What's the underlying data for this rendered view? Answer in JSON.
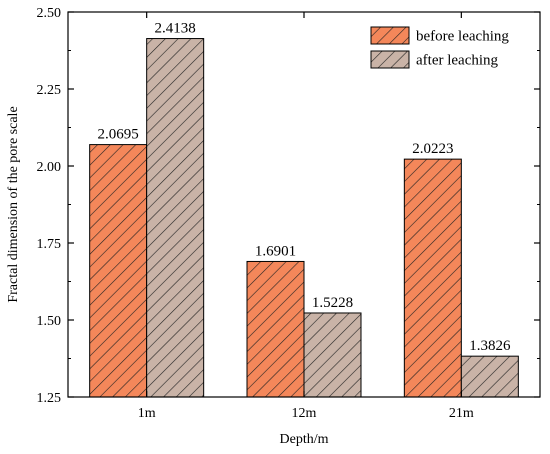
{
  "chart_data": {
    "type": "bar",
    "categories": [
      "1m",
      "12m",
      "21m"
    ],
    "series": [
      {
        "name": "before leaching",
        "values": [
          2.0695,
          1.6901,
          2.0223
        ],
        "value_labels": [
          "2.0695",
          "1.6901",
          "2.0223"
        ],
        "color": "#f4875a",
        "hatch": "diagonal-forward"
      },
      {
        "name": "after leaching",
        "values": [
          2.4138,
          1.5228,
          1.3826
        ],
        "value_labels": [
          "2.4138",
          "1.5228",
          "1.3826"
        ],
        "color": "#c9b3a7",
        "hatch": "diagonal-forward"
      }
    ],
    "xlabel": "Depth/m",
    "ylabel": "Fractal dimension of the pore scale",
    "ylim": [
      1.25,
      2.5
    ],
    "yticks": [
      1.25,
      1.5,
      1.75,
      2.0,
      2.25,
      2.5
    ],
    "ytick_labels": [
      "1.25",
      "1.50",
      "1.75",
      "2.00",
      "2.25",
      "2.50"
    ],
    "legend_position": "top-right",
    "grid": false
  }
}
